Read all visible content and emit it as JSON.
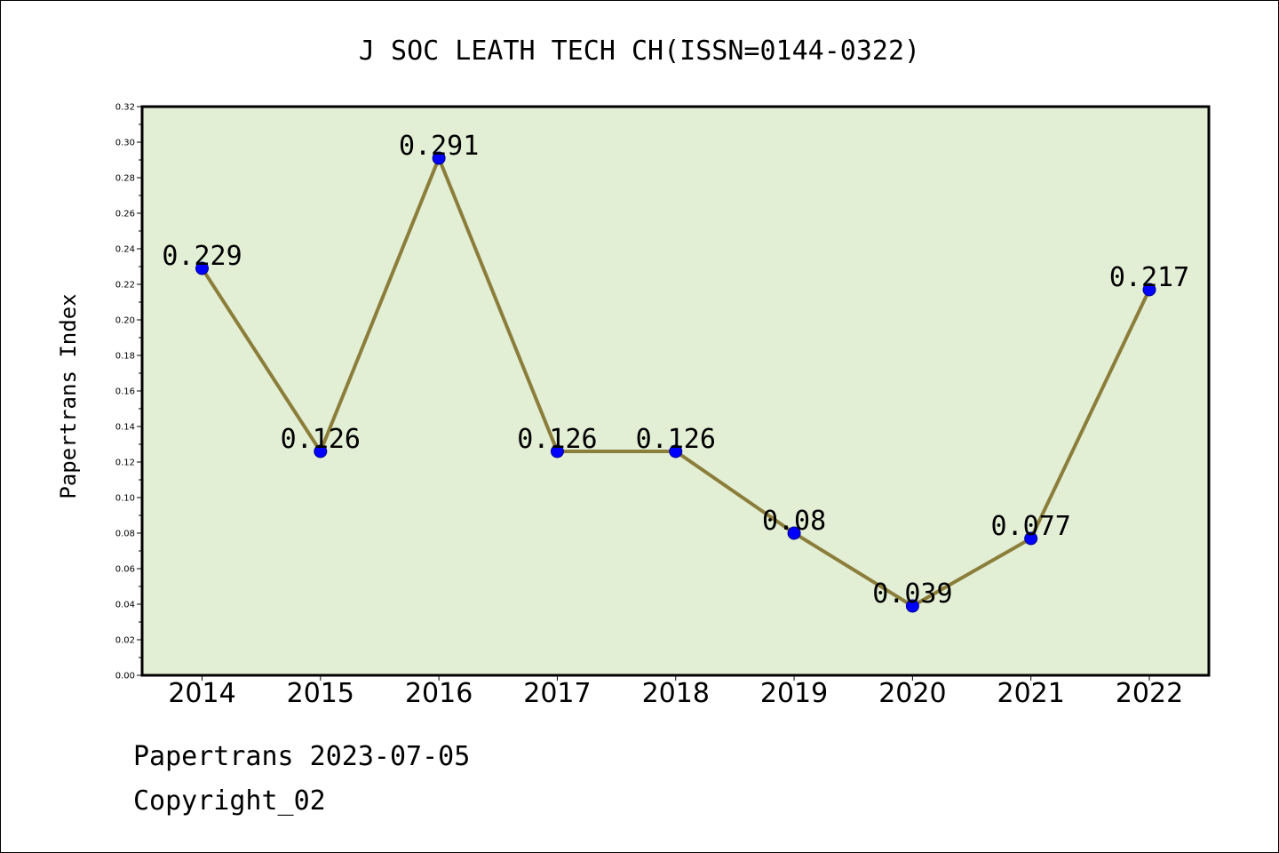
{
  "chart_data": {
    "type": "line",
    "title": "J SOC LEATH TECH CH(ISSN=0144-0322)",
    "xlabel": "",
    "ylabel": "Papertrans Index",
    "categories": [
      "2014",
      "2015",
      "2016",
      "2017",
      "2018",
      "2019",
      "2020",
      "2021",
      "2022"
    ],
    "values": [
      0.229,
      0.126,
      0.291,
      0.126,
      0.126,
      0.08,
      0.039,
      0.077,
      0.217
    ],
    "data_labels": [
      "0.229",
      "0.126",
      "0.291",
      "0.126",
      "0.126",
      "0.08",
      "0.039",
      "0.077",
      "0.217"
    ],
    "ylim": [
      0,
      0.32
    ],
    "yticks": [
      "0.00",
      "0.02",
      "0.04",
      "0.06",
      "0.08",
      "0.10",
      "0.12",
      "0.14",
      "0.16",
      "0.18",
      "0.20",
      "0.22",
      "0.24",
      "0.26",
      "0.28",
      "0.30",
      "0.32"
    ],
    "grid": false,
    "colors": {
      "plot_background": "#e2efd5",
      "line": "#8b7d3a",
      "marker": "#0000ff",
      "marker_edge": "#00008b"
    }
  },
  "footer": {
    "line1": "Papertrans 2023-07-05",
    "line2": "Copyright_02"
  }
}
